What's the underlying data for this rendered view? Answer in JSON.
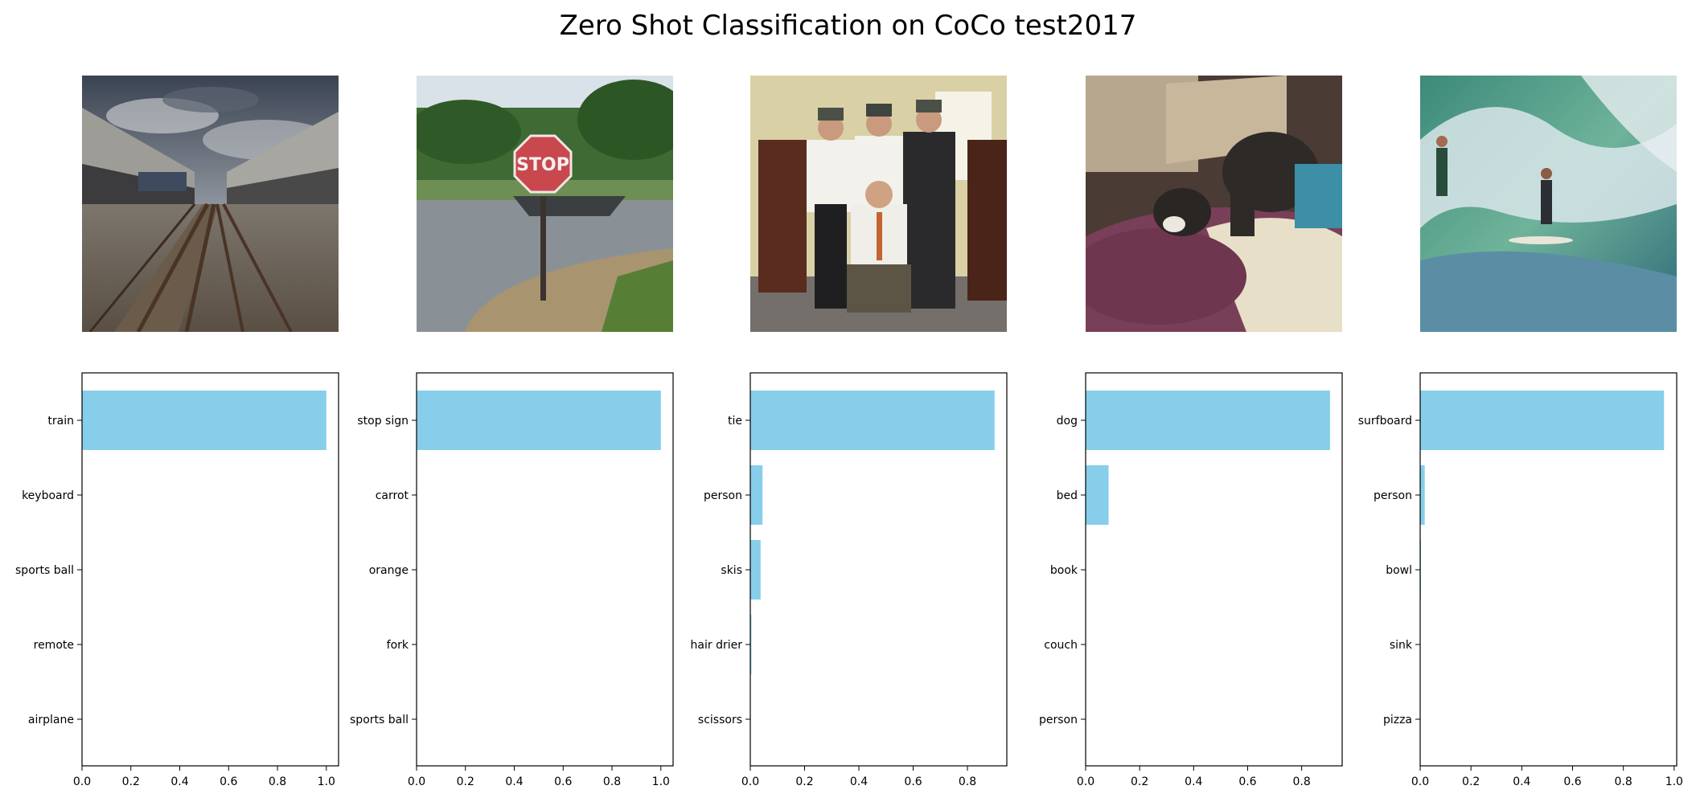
{
  "title": "Zero Shot Classification on CoCo test2017",
  "chart_data": [
    {
      "type": "bar",
      "orientation": "horizontal",
      "categories": [
        "train",
        "keyboard",
        "sports ball",
        "remote",
        "airplane"
      ],
      "values": [
        1.0,
        0.0,
        0.0,
        0.0,
        0.0
      ],
      "xlim": [
        0,
        1.05
      ],
      "xticks": [
        "0.0",
        "0.2",
        "0.4",
        "0.6",
        "0.8",
        "1.0"
      ],
      "bar_color": "#87CEEB",
      "image_content": "railway-tracks"
    },
    {
      "type": "bar",
      "orientation": "horizontal",
      "categories": [
        "stop sign",
        "carrot",
        "orange",
        "fork",
        "sports ball"
      ],
      "values": [
        1.0,
        0.0,
        0.0,
        0.0,
        0.0
      ],
      "xlim": [
        0,
        1.05
      ],
      "xticks": [
        "0.0",
        "0.2",
        "0.4",
        "0.6",
        "0.8",
        "1.0"
      ],
      "bar_color": "#87CEEB",
      "image_content": "stop-sign"
    },
    {
      "type": "bar",
      "orientation": "horizontal",
      "categories": [
        "tie",
        "person",
        "skis",
        "hair drier",
        "scissors"
      ],
      "values": [
        0.9,
        0.045,
        0.038,
        0.004,
        0.001
      ],
      "xlim": [
        0,
        0.945
      ],
      "xticks": [
        "0.0",
        "0.2",
        "0.4",
        "0.6",
        "0.8"
      ],
      "bar_color": "#87CEEB",
      "image_content": "four-men-in-ties"
    },
    {
      "type": "bar",
      "orientation": "horizontal",
      "categories": [
        "dog",
        "bed",
        "book",
        "couch",
        "person"
      ],
      "values": [
        0.905,
        0.085,
        0.001,
        0.001,
        0.0
      ],
      "xlim": [
        0,
        0.95
      ],
      "xticks": [
        "0.0",
        "0.2",
        "0.4",
        "0.6",
        "0.8"
      ],
      "bar_color": "#87CEEB",
      "image_content": "dog-on-bed"
    },
    {
      "type": "bar",
      "orientation": "horizontal",
      "categories": [
        "surfboard",
        "person",
        "bowl",
        "sink",
        "pizza"
      ],
      "values": [
        0.96,
        0.018,
        0.003,
        0.001,
        0.0
      ],
      "xlim": [
        0,
        1.01
      ],
      "xticks": [
        "0.0",
        "0.2",
        "0.4",
        "0.6",
        "0.8",
        "1.0"
      ],
      "bar_color": "#87CEEB",
      "image_content": "surfer-on-wave"
    }
  ]
}
